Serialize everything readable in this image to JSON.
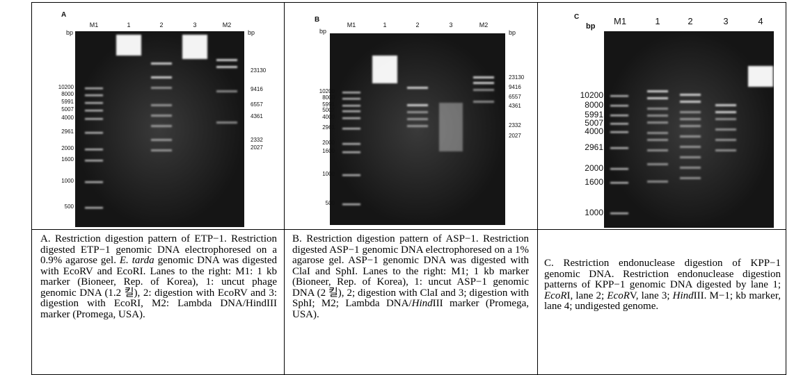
{
  "panels": [
    {
      "letter": "A",
      "lanes": [
        "M1",
        "1",
        "2",
        "3",
        "M2"
      ],
      "bp_left": "bp",
      "bp_right": "bp",
      "sizes_left": [
        10200,
        8000,
        5991,
        5007,
        4000,
        2961,
        2000,
        1600,
        1000,
        500
      ],
      "sizes_right": [
        23130,
        9416,
        6557,
        4361,
        2332,
        2027
      ],
      "caption": [
        "A. Restriction digestion pattern of ETP−1. Restriction digested ETP−1 genomic DNA electrophoresed on a 0.9% agarose gel. ",
        "E. tarda",
        " genomic DNA was digested with EcoRV and EcoRI. Lanes to the right: M1: 1 kb marker (Bioneer, Rep. of Korea), 1: uncut phage genomic DNA (1.2 킬), 2: digestion with EcoRV and 3: digestion with EcoRI, M2: Lambda DNA/HindIII marker (Promega, USA)."
      ]
    },
    {
      "letter": "B",
      "lanes": [
        "M1",
        "1",
        "2",
        "3",
        "M2"
      ],
      "bp_left": "bp",
      "bp_right": "bp",
      "sizes_left": [
        10200,
        8000,
        5991,
        5007,
        4000,
        2961,
        2000,
        1600,
        1000,
        500
      ],
      "sizes_right": [
        23130,
        9416,
        6557,
        4361,
        2332,
        2027
      ],
      "caption": [
        "B. Restriction digestion pattern of ASP−1. Restriction digested ASP−1 genomic DNA electrophoresed on a 1% agarose gel. ASP−1 genomic DNA was digested with ClaI and SphI. Lanes to the right: M1; 1 kb marker (Bioneer, Rep. of Korea), 1: uncut ASP−1 genomic DNA (2 킬), 2; digestion with ClaI and 3; digestion with SphI; M2; Lambda DNA/",
        "Hind",
        "III marker (Promega, USA)."
      ]
    },
    {
      "letter": "C",
      "lanes": [
        "M1",
        "1",
        "2",
        "3",
        "4"
      ],
      "bp_left": "bp",
      "sizes_left": [
        10200,
        8000,
        5991,
        5007,
        4000,
        2961,
        2000,
        1600,
        1000
      ],
      "caption": [
        "C. Restriction endonuclease digestion of KPP−1 genomic DNA. Restriction endonuclease digestion patterns of KPP−1 genomic DNA digested by lane 1; ",
        "EcoR",
        "I, lane 2; ",
        "EcoR",
        "V, lane 3; ",
        "Hind",
        "III. M−1; kb marker, lane 4; undigested genome."
      ]
    }
  ]
}
